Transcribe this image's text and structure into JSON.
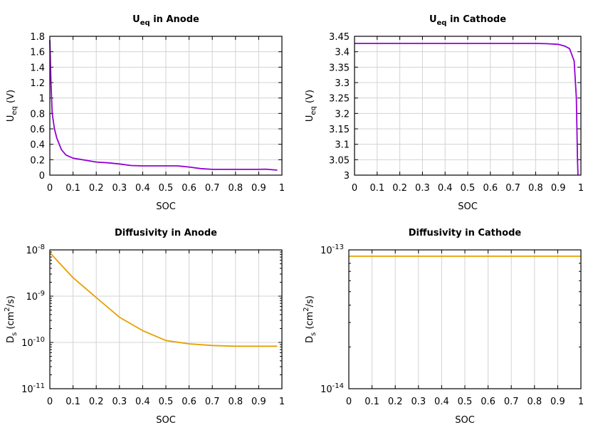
{
  "chart_data": [
    {
      "type": "line",
      "title": {
        "main": "U",
        "sub": "eq",
        "rest": " in Anode"
      },
      "xlabel": "SOC",
      "ylabel": {
        "main": "U",
        "sub": "eq",
        "rest": " (V)"
      },
      "xlim": [
        0,
        1
      ],
      "ylim": [
        0,
        1.8
      ],
      "yscale": "linear",
      "grid": true,
      "xticks": [
        "0",
        "0.1",
        "0.2",
        "0.3",
        "0.4",
        "0.5",
        "0.6",
        "0.7",
        "0.8",
        "0.9",
        "1"
      ],
      "yticks": [
        "0",
        "0.2",
        "0.4",
        "0.6",
        "0.8",
        "1",
        "1.2",
        "1.4",
        "1.6",
        "1.8"
      ],
      "color": "#9400d3",
      "x": [
        0,
        0.005,
        0.01,
        0.02,
        0.03,
        0.05,
        0.07,
        0.1,
        0.15,
        0.2,
        0.25,
        0.3,
        0.35,
        0.4,
        0.45,
        0.55,
        0.6,
        0.65,
        0.7,
        0.8,
        0.9,
        0.93,
        0.98
      ],
      "y": [
        1.75,
        1.2,
        0.8,
        0.6,
        0.48,
        0.33,
        0.26,
        0.22,
        0.195,
        0.17,
        0.16,
        0.145,
        0.125,
        0.12,
        0.12,
        0.12,
        0.105,
        0.085,
        0.075,
        0.075,
        0.075,
        0.078,
        0.065
      ]
    },
    {
      "type": "line",
      "title": {
        "main": "U",
        "sub": "eq",
        "rest": " in Cathode"
      },
      "xlabel": "SOC",
      "ylabel": {
        "main": "U",
        "sub": "eq",
        "rest": " (V)"
      },
      "xlim": [
        0,
        1
      ],
      "ylim": [
        3,
        3.45
      ],
      "yscale": "linear",
      "grid": true,
      "xticks": [
        "0",
        "0.1",
        "0.2",
        "0.3",
        "0.4",
        "0.5",
        "0.6",
        "0.7",
        "0.8",
        "0.9",
        "1"
      ],
      "yticks": [
        "3",
        "3.05",
        "3.1",
        "3.15",
        "3.2",
        "3.25",
        "3.3",
        "3.35",
        "3.4",
        "3.45"
      ],
      "color": "#9400d3",
      "x": [
        0,
        0.8,
        0.85,
        0.9,
        0.93,
        0.95,
        0.96,
        0.97,
        0.98,
        0.985,
        0.987
      ],
      "y": [
        3.427,
        3.427,
        3.426,
        3.424,
        3.418,
        3.41,
        3.39,
        3.37,
        3.25,
        3.05,
        3.0
      ]
    },
    {
      "type": "line",
      "title": {
        "main": "Diffusivity in Anode",
        "sub": "",
        "rest": ""
      },
      "xlabel": "SOC",
      "ylabel": {
        "main": "D",
        "sub": "s",
        "rest": " (cm",
        "sup": "2",
        "rest2": "/s)"
      },
      "xlim": [
        0,
        1
      ],
      "ylim": [
        1e-11,
        1e-08
      ],
      "yscale": "log",
      "grid": true,
      "xticks": [
        "0",
        "0.1",
        "0.2",
        "0.3",
        "0.4",
        "0.5",
        "0.6",
        "0.7",
        "0.8",
        "0.9",
        "1"
      ],
      "yticks": [
        {
          "base": "10",
          "exp": "-11"
        },
        {
          "base": "10",
          "exp": "-10"
        },
        {
          "base": "10",
          "exp": "-9"
        },
        {
          "base": "10",
          "exp": "-8"
        }
      ],
      "color": "#e69f00",
      "x": [
        0,
        0.1,
        0.2,
        0.3,
        0.4,
        0.5,
        0.6,
        0.7,
        0.8,
        0.9,
        0.98
      ],
      "y": [
        8.7e-09,
        2.5e-09,
        9.3e-10,
        3.5e-10,
        1.8e-10,
        1.1e-10,
        9.3e-11,
        8.6e-11,
        8.3e-11,
        8.3e-11,
        8.3e-11
      ]
    },
    {
      "type": "line",
      "title": {
        "main": "Diffusivity in Cathode",
        "sub": "",
        "rest": ""
      },
      "xlabel": "SOC",
      "ylabel": {
        "main": "D",
        "sub": "s",
        "rest": " (cm",
        "sup": "2",
        "rest2": "/s)"
      },
      "xlim": [
        0,
        1
      ],
      "ylim": [
        1e-14,
        1e-13
      ],
      "yscale": "log",
      "grid": true,
      "xticks": [
        "0",
        "0.1",
        "0.2",
        "0.3",
        "0.4",
        "0.5",
        "0.6",
        "0.7",
        "0.8",
        "0.9",
        "1"
      ],
      "yticks": [
        {
          "base": "10",
          "exp": "-14"
        },
        {
          "base": "10",
          "exp": "-13"
        }
      ],
      "color": "#e69f00",
      "x": [
        0,
        1
      ],
      "y": [
        9e-14,
        9e-14
      ]
    }
  ]
}
